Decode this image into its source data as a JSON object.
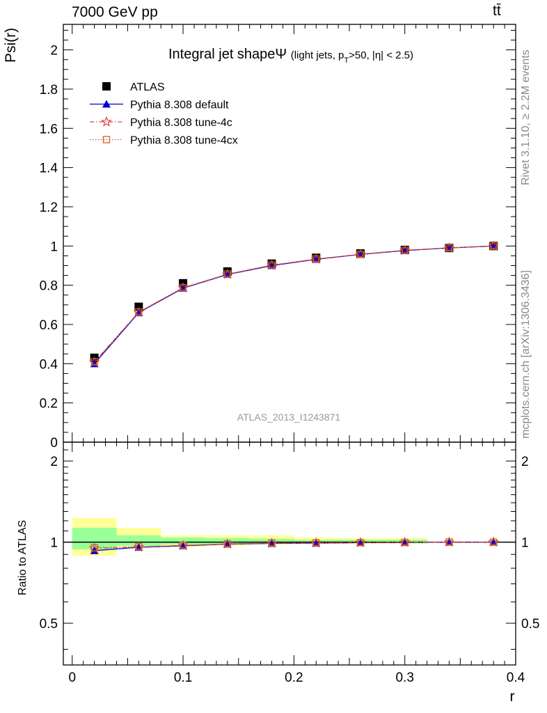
{
  "header": {
    "energy_label": "7000 GeV pp",
    "process_label": "tt̄"
  },
  "side_labels": {
    "rivet": "Rivet 3.1.10, ≥ 2.2M events",
    "mcplots": "mcplots.cern.ch [arXiv:1306.3436]"
  },
  "chart_data": [
    {
      "type": "line",
      "title": "Integral jet shapeΨ",
      "title_detail": "(light jets, p_T>50, |η| < 2.5)",
      "title_detail_parts": [
        "(light jets, p",
        "T",
        ">50, |η| < 2.5)"
      ],
      "ylabel": "Psi(r)",
      "xlabel": "r",
      "xlim": [
        -0.008,
        0.4
      ],
      "ylim": [
        0,
        2.13
      ],
      "x_ticks": [
        0,
        0.1,
        0.2,
        0.3,
        0.4
      ],
      "y_ticks": [
        0,
        0.2,
        0.4,
        0.6,
        0.8,
        1,
        1.2,
        1.4,
        1.6,
        1.8,
        2
      ],
      "y_tick_labels": [
        "0",
        "0.2",
        "0.4",
        "0.6",
        "0.8",
        "1",
        "1.2",
        "1.4",
        "1.6",
        "1.8",
        "2"
      ],
      "watermark": "ATLAS_2013_I1243871",
      "legend_position": "top-left",
      "x": [
        0.02,
        0.06,
        0.1,
        0.14,
        0.18,
        0.22,
        0.26,
        0.3,
        0.34,
        0.38
      ],
      "series": [
        {
          "name": "ATLAS",
          "marker": "square",
          "color": "#000000",
          "values": [
            0.43,
            0.69,
            0.81,
            0.87,
            0.91,
            0.94,
            0.962,
            0.98,
            0.99,
            1.0
          ]
        },
        {
          "name": "Pythia 8.308 default",
          "marker": "triangle",
          "color": "#0000cc",
          "dash": "solid",
          "values": [
            0.4,
            0.66,
            0.785,
            0.855,
            0.9,
            0.932,
            0.957,
            0.977,
            0.99,
            1.0
          ]
        },
        {
          "name": "Pythia 8.308 tune-4c",
          "marker": "star",
          "color": "#e04040",
          "dash": "dashdot",
          "values": [
            0.408,
            0.662,
            0.787,
            0.856,
            0.902,
            0.933,
            0.958,
            0.978,
            0.99,
            1.0
          ]
        },
        {
          "name": "Pythia 8.308 tune-4cx",
          "marker": "open-square",
          "color": "#d06020",
          "dash": "dotted",
          "values": [
            0.41,
            0.664,
            0.788,
            0.857,
            0.903,
            0.934,
            0.958,
            0.978,
            0.991,
            1.0
          ]
        }
      ]
    },
    {
      "type": "line",
      "ylabel": "Ratio to ATLAS",
      "xlabel": "r",
      "xlim": [
        -0.008,
        0.4
      ],
      "ylim": [
        0.35,
        2.35
      ],
      "y_scale": "log",
      "y_tick_labels_major": [
        "0.5",
        "1",
        "2"
      ],
      "y_ticks_major": [
        0.5,
        1,
        2
      ],
      "x_tick_labels": [
        "0",
        "0.1",
        "0.2",
        "0.3",
        "0.4"
      ],
      "x_ticks": [
        0,
        0.1,
        0.2,
        0.3,
        0.4
      ],
      "reference_line": 1,
      "bands": {
        "edges": [
          0,
          0.04,
          0.08,
          0.12,
          0.16,
          0.2,
          0.24,
          0.28,
          0.32,
          0.36,
          0.4
        ],
        "yellow": [
          [
            0.89,
            1.23
          ],
          [
            0.96,
            1.13
          ],
          [
            0.96,
            1.06
          ],
          [
            0.97,
            1.06
          ],
          [
            0.98,
            1.06
          ],
          [
            0.985,
            1.04
          ],
          [
            0.985,
            1.035
          ],
          [
            0.985,
            1.035
          ],
          [
            1,
            1
          ],
          [
            1,
            1
          ]
        ],
        "green": [
          [
            0.94,
            1.13
          ],
          [
            0.97,
            1.06
          ],
          [
            0.98,
            1.04
          ],
          [
            0.985,
            1.035
          ],
          [
            0.99,
            1.03
          ],
          [
            0.99,
            1.02
          ],
          [
            0.99,
            1.02
          ],
          [
            0.99,
            1.02
          ],
          [
            1,
            1
          ],
          [
            1,
            1
          ]
        ],
        "yellow_color": "#ffff99",
        "green_color": "#99ff99"
      },
      "x": [
        0.02,
        0.06,
        0.1,
        0.14,
        0.18,
        0.22,
        0.26,
        0.3,
        0.34,
        0.38
      ],
      "series": [
        {
          "name": "Pythia 8.308 default",
          "marker": "triangle",
          "color": "#0000cc",
          "dash": "solid",
          "values": [
            0.93,
            0.957,
            0.969,
            0.983,
            0.989,
            0.991,
            0.995,
            0.997,
            1.0,
            1.0
          ]
        },
        {
          "name": "Pythia 8.308 tune-4c",
          "marker": "star",
          "color": "#e04040",
          "dash": "dashdot",
          "values": [
            0.949,
            0.959,
            0.972,
            0.984,
            0.991,
            0.993,
            0.996,
            0.998,
            1.0,
            1.0
          ]
        },
        {
          "name": "Pythia 8.308 tune-4cx",
          "marker": "open-square",
          "color": "#d06020",
          "dash": "dotted",
          "values": [
            0.953,
            0.962,
            0.973,
            0.985,
            0.992,
            0.994,
            0.996,
            0.998,
            1.001,
            1.0
          ]
        }
      ]
    }
  ]
}
